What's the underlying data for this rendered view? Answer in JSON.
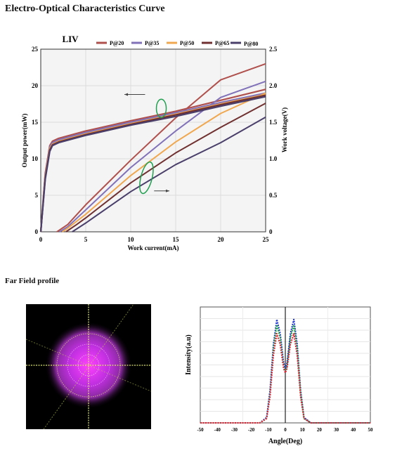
{
  "page": {
    "title": "Electro-Optical Characteristics Curve",
    "farfield_title": "Far Field profile"
  },
  "chart_data": [
    {
      "type": "line",
      "title": "LIV",
      "xlabel": "Work current(mA)",
      "ylabel": "Output power(mW)",
      "y2label": "Work voltage(V)",
      "xlim": [
        0,
        25
      ],
      "ylim": [
        0,
        25
      ],
      "y2lim": [
        0,
        2.5
      ],
      "xticks": [
        0,
        5,
        10,
        15,
        20,
        25
      ],
      "yticks": [
        0,
        5,
        10,
        15,
        20,
        25
      ],
      "y2ticks": [
        "0",
        "0.5",
        "1.0",
        "1.5",
        "2.0",
        "2.5"
      ],
      "grid": true,
      "legend_position": "top",
      "series": [
        {
          "name": "P@20",
          "color": "#b0504c",
          "power": [
            [
              1.8,
              0
            ],
            [
              3,
              1
            ],
            [
              5,
              3.7
            ],
            [
              10,
              9.8
            ],
            [
              15,
              15.6
            ],
            [
              20,
              20.8
            ],
            [
              25,
              23
            ]
          ],
          "voltage": [
            [
              0,
              0
            ],
            [
              0.5,
              0.8
            ],
            [
              1,
              1.18
            ],
            [
              1.3,
              1.24
            ],
            [
              2,
              1.28
            ],
            [
              5,
              1.38
            ],
            [
              10,
              1.52
            ],
            [
              15,
              1.65
            ],
            [
              20,
              1.8
            ],
            [
              25,
              1.95
            ]
          ]
        },
        {
          "name": "P@35",
          "color": "#8071b8",
          "power": [
            [
              2.1,
              0
            ],
            [
              3,
              0.7
            ],
            [
              5,
              3
            ],
            [
              10,
              8.8
            ],
            [
              15,
              13.8
            ],
            [
              20,
              18.4
            ],
            [
              25,
              20.6
            ]
          ],
          "voltage": [
            [
              0,
              0
            ],
            [
              0.5,
              0.78
            ],
            [
              1,
              1.16
            ],
            [
              1.3,
              1.22
            ],
            [
              2,
              1.26
            ],
            [
              5,
              1.36
            ],
            [
              10,
              1.5
            ],
            [
              15,
              1.63
            ],
            [
              20,
              1.77
            ],
            [
              25,
              1.9
            ]
          ]
        },
        {
          "name": "P@50",
          "color": "#f0a850",
          "power": [
            [
              2.4,
              0
            ],
            [
              3,
              0.5
            ],
            [
              5,
              2.4
            ],
            [
              10,
              7.7
            ],
            [
              15,
              12.3
            ],
            [
              20,
              16.2
            ],
            [
              25,
              19
            ]
          ],
          "voltage": [
            [
              0,
              0
            ],
            [
              0.5,
              0.76
            ],
            [
              1,
              1.14
            ],
            [
              1.3,
              1.2
            ],
            [
              2,
              1.24
            ],
            [
              5,
              1.34
            ],
            [
              10,
              1.48
            ],
            [
              15,
              1.61
            ],
            [
              20,
              1.75
            ],
            [
              25,
              1.88
            ]
          ]
        },
        {
          "name": "P@65",
          "color": "#703030",
          "power": [
            [
              2.8,
              0
            ],
            [
              4,
              1
            ],
            [
              5,
              1.9
            ],
            [
              10,
              6.7
            ],
            [
              15,
              10.8
            ],
            [
              20,
              14.3
            ],
            [
              25,
              17.6
            ]
          ],
          "voltage": [
            [
              0,
              0
            ],
            [
              0.5,
              0.74
            ],
            [
              1,
              1.12
            ],
            [
              1.3,
              1.19
            ],
            [
              2,
              1.23
            ],
            [
              5,
              1.33
            ],
            [
              10,
              1.47
            ],
            [
              15,
              1.6
            ],
            [
              20,
              1.74
            ],
            [
              25,
              1.87
            ]
          ]
        },
        {
          "name": "P@80",
          "color": "#4a3f6a",
          "power": [
            [
              3.5,
              0
            ],
            [
              5,
              1.2
            ],
            [
              10,
              5.5
            ],
            [
              15,
              9.2
            ],
            [
              20,
              12.2
            ],
            [
              25,
              15.7
            ]
          ],
          "voltage": [
            [
              0,
              0
            ],
            [
              0.5,
              0.72
            ],
            [
              1,
              1.1
            ],
            [
              1.3,
              1.18
            ],
            [
              2,
              1.22
            ],
            [
              5,
              1.32
            ],
            [
              10,
              1.46
            ],
            [
              15,
              1.58
            ],
            [
              20,
              1.72
            ],
            [
              25,
              1.85
            ]
          ]
        }
      ]
    },
    {
      "type": "line",
      "title": "",
      "xlabel": "Angle(Deg)",
      "ylabel": "Intensity(a.u)",
      "xlim": [
        -50,
        50
      ],
      "ylim": [
        0,
        1
      ],
      "xticks": [
        "-50",
        "-40",
        "-30",
        "-20",
        "-10",
        "0",
        "10",
        "20",
        "30",
        "40",
        "50"
      ],
      "grid": true,
      "series": [
        {
          "color": "#1a2fd0",
          "x": [
            -50,
            -15,
            -11,
            -9,
            -7,
            -5,
            -3,
            -1,
            0,
            1,
            3,
            5,
            7,
            9,
            11,
            15,
            50
          ],
          "y": [
            0,
            0,
            0.05,
            0.3,
            0.72,
            0.95,
            0.82,
            0.55,
            0.5,
            0.55,
            0.82,
            0.95,
            0.72,
            0.3,
            0.05,
            0,
            0
          ]
        },
        {
          "color": "#18a040",
          "x": [
            -50,
            -15,
            -11,
            -9,
            -7,
            -5,
            -3,
            -1,
            0,
            1,
            3,
            5,
            7,
            9,
            11,
            15,
            50
          ],
          "y": [
            0,
            0,
            0.04,
            0.27,
            0.68,
            0.9,
            0.78,
            0.52,
            0.48,
            0.52,
            0.78,
            0.9,
            0.68,
            0.27,
            0.04,
            0,
            0
          ]
        },
        {
          "color": "#e02030",
          "x": [
            -50,
            -15,
            -11,
            -9,
            -7,
            -5,
            -3,
            -1,
            0,
            1,
            3,
            5,
            7,
            9,
            11,
            15,
            50
          ],
          "y": [
            0,
            0,
            0.04,
            0.24,
            0.62,
            0.82,
            0.72,
            0.5,
            0.46,
            0.5,
            0.72,
            0.82,
            0.62,
            0.24,
            0.04,
            0,
            0
          ]
        }
      ]
    }
  ]
}
